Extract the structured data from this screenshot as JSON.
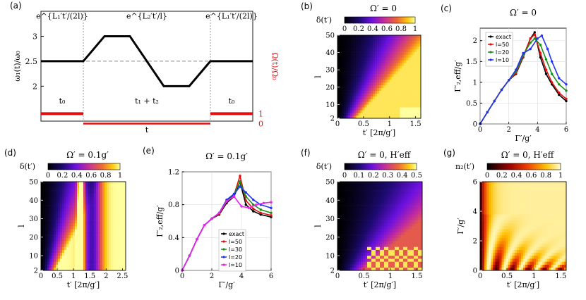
{
  "figure": {
    "colors": {
      "red": "#e01010",
      "black": "#000000",
      "green": "#1a8f1a",
      "blue": "#2233ee",
      "magenta": "#ee22ee",
      "dash": "#888888"
    }
  },
  "chart_data": [
    {
      "id": "a",
      "type": "line",
      "letter": "(a)",
      "title": "",
      "xlabel": "t",
      "ylabel": "ω₁(t)/ω₀",
      "ylabel_right": "Ω(t)/Ω₀",
      "xlim": [
        0,
        10
      ],
      "ylim": [
        1.3,
        3.5
      ],
      "yticks": [
        2,
        2.5,
        3
      ],
      "yticks_right": [
        "1",
        "0"
      ],
      "yticks_right_values": [
        1.45,
        1.25
      ],
      "vlines": [
        2,
        8
      ],
      "dashed_y": 2.5,
      "series": [
        {
          "name": "omega1",
          "x": [
            0,
            2,
            3,
            4.2,
            5.8,
            7,
            8,
            10
          ],
          "y": [
            2.5,
            2.5,
            3,
            3,
            2,
            2,
            2.5,
            2.5
          ]
        }
      ],
      "red_segments": [
        {
          "x": [
            0,
            2
          ],
          "y": 1.45
        },
        {
          "x": [
            2,
            8
          ],
          "y": 1.25
        },
        {
          "x": [
            8,
            10
          ],
          "y": 1.45
        }
      ],
      "annotations": [
        {
          "text": "e^{L₁′t′/(2l)}",
          "x": 1,
          "y": 3.35
        },
        {
          "text": "e^{L₂′t′/l}",
          "x": 5,
          "y": 3.35
        },
        {
          "text": "e^{L₁′t′/(2l)}",
          "x": 9,
          "y": 3.35
        },
        {
          "text": "t₀",
          "x": 1,
          "y": 1.65
        },
        {
          "text": "t₁ + t₂",
          "x": 5,
          "y": 1.65
        },
        {
          "text": "t₀",
          "x": 9,
          "y": 1.65
        }
      ]
    },
    {
      "id": "b",
      "type": "heatmap",
      "letter": "(b)",
      "title": "Ω′ = 0",
      "cbar_label": "δ(t′)",
      "xlabel": "t′ [2π/g′]",
      "ylabel": "l",
      "xlim": [
        0,
        1.6
      ],
      "ylim": [
        2,
        50
      ],
      "xticks": [
        0,
        0.5,
        1,
        1.5
      ],
      "yticks": [
        2,
        10,
        20,
        30,
        40,
        50
      ],
      "cbar_ticks": [
        "0",
        "0.2",
        "0.4",
        "0.6",
        "0.8",
        "1"
      ],
      "cbar_range": [
        0,
        1
      ]
    },
    {
      "id": "c",
      "type": "scatter",
      "letter": "(c)",
      "title": "Ω′ = 0",
      "xlabel": "Γ′/g′",
      "ylabel": "Γ′₂,eff/g′",
      "xlim": [
        0,
        6
      ],
      "ylim": [
        0,
        2.3
      ],
      "xticks": [
        0,
        2,
        4,
        6
      ],
      "yticks": [
        0,
        0.5,
        1,
        1.5,
        2
      ],
      "legend": [
        "exact",
        "l=50",
        "l=20",
        "l=10"
      ],
      "series": [
        {
          "name": "exact",
          "x": [
            0,
            0.5,
            1,
            1.5,
            2,
            2.5,
            3,
            3.5,
            3.8,
            4.2,
            4.6,
            5,
            5.5,
            6
          ],
          "y": [
            0,
            0.28,
            0.55,
            0.82,
            1.05,
            1.2,
            1.6,
            2.05,
            2.2,
            1.6,
            1.2,
            0.95,
            0.7,
            0.55
          ]
        },
        {
          "name": "l=50",
          "x": [
            0,
            0.5,
            1,
            1.5,
            2,
            2.5,
            3,
            3.5,
            3.8,
            4.2,
            4.6,
            5,
            5.5,
            6
          ],
          "y": [
            0,
            0.28,
            0.55,
            0.82,
            1.05,
            1.22,
            1.62,
            2.05,
            2.15,
            1.7,
            1.3,
            1.0,
            0.75,
            0.6
          ]
        },
        {
          "name": "l=20",
          "x": [
            0,
            0.5,
            1,
            1.5,
            2,
            2.5,
            3,
            3.5,
            3.8,
            4.2,
            4.6,
            5,
            5.5,
            6
          ],
          "y": [
            0,
            0.28,
            0.55,
            0.82,
            1.05,
            1.25,
            1.65,
            1.95,
            2.05,
            1.9,
            1.55,
            1.2,
            0.95,
            0.8
          ]
        },
        {
          "name": "l=10",
          "x": [
            0,
            0.5,
            1,
            1.5,
            2,
            2.5,
            3,
            3.5,
            4,
            4.3,
            4.7,
            5,
            5.5,
            6
          ],
          "y": [
            0,
            0.28,
            0.55,
            0.82,
            1.05,
            1.3,
            1.7,
            1.8,
            2.05,
            2.12,
            1.8,
            1.5,
            1.1,
            0.95
          ]
        }
      ]
    },
    {
      "id": "d",
      "type": "heatmap",
      "letter": "(d)",
      "title": "Ω′ = 0.1g′",
      "cbar_label": "δ(t′)",
      "xlabel": "t′ [2π/g′]",
      "ylabel": "l",
      "xlim": [
        0,
        2.6
      ],
      "ylim": [
        2,
        50
      ],
      "xticks": [
        0,
        0.5,
        1,
        1.5,
        2,
        2.5
      ],
      "yticks": [
        2,
        10,
        20,
        30,
        40,
        50
      ],
      "cbar_ticks": [
        "0",
        "0.2",
        "0.4",
        "0.6",
        "0.8",
        "1"
      ],
      "cbar_range": [
        0,
        1
      ]
    },
    {
      "id": "e",
      "type": "scatter",
      "letter": "(e)",
      "title": "Ω′ = 0.1g′",
      "xlabel": "Γ′/g′",
      "ylabel": "Γ′₂,eff/g′",
      "xlim": [
        0,
        6
      ],
      "ylim": [
        0,
        1.2
      ],
      "xticks": [
        0,
        2,
        4,
        6
      ],
      "yticks": [
        0,
        0.4,
        0.8,
        1.2
      ],
      "legend": [
        "exact",
        "l=50",
        "l=30",
        "l=20",
        "l=10"
      ],
      "series": [
        {
          "name": "exact",
          "x": [
            0,
            0.5,
            1,
            1.5,
            2,
            2.5,
            3,
            3.5,
            3.9,
            4.3,
            4.8,
            5.3,
            6
          ],
          "y": [
            0,
            0.18,
            0.38,
            0.55,
            0.63,
            0.68,
            0.82,
            0.9,
            1.08,
            0.8,
            0.72,
            0.68,
            0.65
          ]
        },
        {
          "name": "l=50",
          "x": [
            0,
            0.5,
            1,
            1.5,
            2,
            2.5,
            3,
            3.5,
            3.9,
            4.3,
            4.8,
            5.3,
            6
          ],
          "y": [
            0,
            0.18,
            0.38,
            0.55,
            0.63,
            0.69,
            0.84,
            0.92,
            1.15,
            0.85,
            0.75,
            0.7,
            0.67
          ]
        },
        {
          "name": "l=30",
          "x": [
            0,
            0.5,
            1,
            1.5,
            2,
            2.5,
            3,
            3.5,
            3.9,
            4.3,
            4.8,
            5.3,
            6
          ],
          "y": [
            0,
            0.18,
            0.38,
            0.55,
            0.63,
            0.7,
            0.85,
            0.93,
            1.08,
            0.9,
            0.8,
            0.74,
            0.7
          ]
        },
        {
          "name": "l=20",
          "x": [
            0,
            0.5,
            1,
            1.5,
            2,
            2.5,
            3,
            3.5,
            3.9,
            4.3,
            4.8,
            5.3,
            6
          ],
          "y": [
            0,
            0.18,
            0.38,
            0.55,
            0.63,
            0.7,
            0.86,
            0.93,
            1.02,
            0.95,
            0.86,
            0.8,
            0.76
          ]
        },
        {
          "name": "l=10",
          "x": [
            0,
            0.5,
            1,
            1.5,
            2,
            2.5,
            3,
            3.5,
            4,
            4.5,
            5,
            5.5,
            6
          ],
          "y": [
            0,
            0.18,
            0.38,
            0.55,
            0.63,
            0.7,
            0.84,
            0.9,
            0.78,
            0.76,
            0.8,
            0.82,
            0.83
          ]
        }
      ]
    },
    {
      "id": "f",
      "type": "heatmap",
      "letter": "(f)",
      "title": "Ω′ = 0, H′eff",
      "cbar_label": "δ(t′)",
      "xlabel": "t′ [2π/g′]",
      "ylabel": "l",
      "xlim": [
        0,
        1.6
      ],
      "ylim": [
        2,
        50
      ],
      "xticks": [
        0,
        0.5,
        1,
        1.5
      ],
      "yticks": [
        2,
        10,
        20,
        30,
        40,
        50
      ],
      "cbar_ticks": [
        "0",
        "0.1",
        "0.2",
        "0.3",
        "0.4",
        "0.5"
      ],
      "cbar_range": [
        0,
        0.5
      ]
    },
    {
      "id": "g",
      "type": "heatmap",
      "letter": "(g)",
      "title": "Ω′ = 0, H′eff",
      "cbar_label": "n₂(t′)",
      "xlabel": "t′ [2π/g′]",
      "ylabel": "Γ′/g′",
      "xlim": [
        0,
        1.6
      ],
      "ylim": [
        0,
        6
      ],
      "xticks": [
        0,
        0.5,
        1,
        1.5
      ],
      "yticks": [
        0,
        2,
        4,
        6
      ],
      "cbar_ticks": [
        "0",
        "0.2",
        "0.4",
        "0.6",
        "0.8",
        "1"
      ],
      "cbar_range": [
        0,
        1
      ]
    }
  ]
}
